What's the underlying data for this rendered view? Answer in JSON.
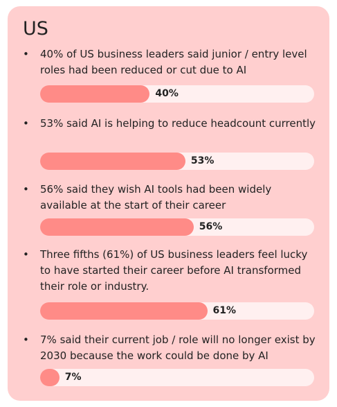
{
  "title": "US",
  "colors": {
    "card_background": "#ffcfcf",
    "bar_track": "#fff0f0",
    "bar_fill": "#ff8b87",
    "text": "#222222"
  },
  "chart_data": {
    "type": "bar",
    "orientation": "horizontal",
    "title": "US",
    "ylim": [
      0,
      100
    ],
    "categories": [
      "40% of US business leaders said junior / entry level roles had been reduced or cut due to AI",
      "53% said AI is helping to reduce headcount currently",
      "56% said they wish AI tools had been widely available at the start of their career",
      "Three fifths (61%) of US business leaders feel lucky to have started their career before AI transformed their role or industry.",
      "7% said their current job / role will no longer exist by 2030 because the work could be done by AI"
    ],
    "values": [
      40,
      53,
      56,
      61,
      7
    ],
    "data_labels": [
      "40%",
      "53%",
      "56%",
      "61%",
      "7%"
    ]
  }
}
